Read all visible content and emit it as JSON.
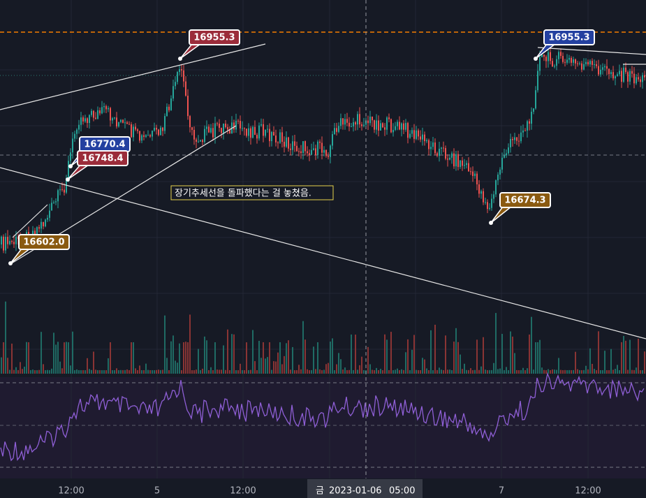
{
  "price_labels": [
    "16955.3",
    "16770.4",
    "16748.4",
    "16602.0",
    "16674.3",
    "16955.3"
  ],
  "annotation": "장기추세선을 돌파했다는 걸 놓쳤음.",
  "x_axis": [
    "12:00",
    "5",
    "12:00",
    "7",
    "12:00"
  ],
  "crosshair": {
    "day": "금",
    "date": "2023-01-06",
    "time": "05:00"
  }
}
